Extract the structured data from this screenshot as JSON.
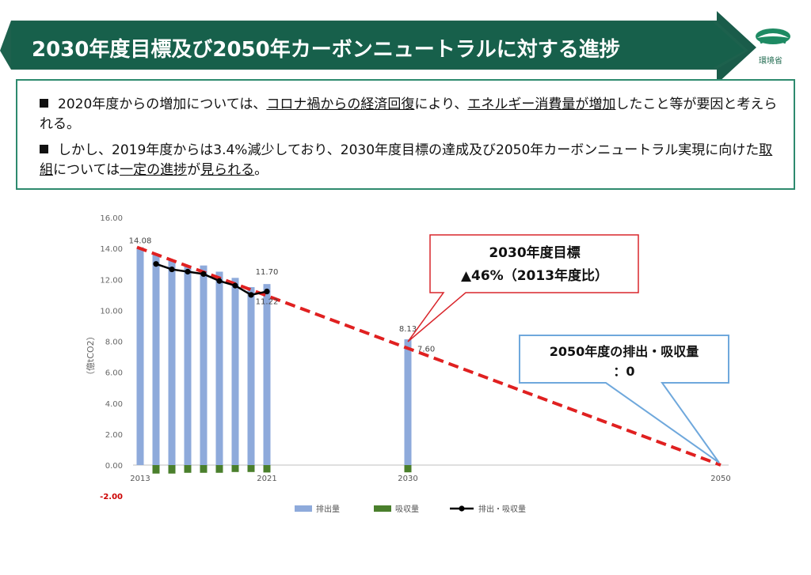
{
  "header": {
    "title": "2030年度目標及び2050年カーボンニュートラルに対する進捗",
    "logo_text": "環境省"
  },
  "summary": {
    "bullet1": {
      "p1": "2020年度からの増加については、",
      "u1": "コロナ禍からの経済回復",
      "p2": "により、",
      "u2": "エネルギー消費量が増加",
      "p3": "したこと等が要因と考えられる。"
    },
    "bullet2": {
      "p1": "しかし、2019年度からは3.4%減少しており、2030年度目標の達成及び2050年カーボンニュートラル実現に向けた",
      "u1": "取組",
      "p2": "については",
      "u2": "一定の進捗",
      "p3": "が",
      "u3": "見られる",
      "p4": "。"
    }
  },
  "callouts": {
    "target2030_line1": "2030年度目標",
    "target2030_line2": "▲46%（2013年度比）",
    "target2050_line1": "2050年度の排出・吸収量",
    "target2050_line2": "：0"
  },
  "chart_data": {
    "type": "bar",
    "ylabel": "（億tCO2）",
    "ylim": [
      -2,
      16
    ],
    "yticks": [
      "16.00",
      "14.00",
      "12.00",
      "10.00",
      "8.00",
      "6.00",
      "4.00",
      "2.00",
      "0.00",
      "-2.00"
    ],
    "xtick_labels": [
      "2013",
      "2021",
      "2030",
      "2050"
    ],
    "years": [
      2013,
      2014,
      2015,
      2016,
      2017,
      2018,
      2019,
      2020,
      2021,
      2030,
      2050
    ],
    "series": [
      {
        "name": "排出量",
        "color": "#8eaadb",
        "values": [
          14.08,
          13.6,
          13.2,
          12.9,
          12.9,
          12.5,
          12.1,
          11.5,
          11.7,
          8.13,
          null
        ]
      },
      {
        "name": "吸収量",
        "color": "#4a7f2c",
        "values": [
          null,
          -0.55,
          -0.55,
          -0.5,
          -0.5,
          -0.5,
          -0.45,
          -0.45,
          -0.48,
          -0.47,
          null
        ]
      },
      {
        "name": "排出・吸収量",
        "color": "#000000",
        "values": [
          null,
          13.0,
          12.65,
          12.5,
          12.35,
          11.9,
          11.6,
          11.0,
          11.22,
          null,
          null
        ]
      }
    ],
    "target_line": {
      "color": "#e02020",
      "from": {
        "year": 2013,
        "value": 14.08
      },
      "to": {
        "year": 2050,
        "value": 0
      }
    },
    "data_labels": [
      {
        "year": 2013,
        "value": 14.08,
        "text": "14.08"
      },
      {
        "year": 2021,
        "value": 11.7,
        "text": "11.70"
      },
      {
        "year": 2021,
        "value": 11.22,
        "text": "11.22"
      },
      {
        "year": 2030,
        "value": 8.13,
        "text": "8.13"
      },
      {
        "year": 2030,
        "value": 7.6,
        "text": "7.60"
      }
    ],
    "colors": {
      "neg_tick": "#cc0000",
      "callout_red": "#d9262c",
      "callout_blue": "#6fa8dc"
    }
  }
}
